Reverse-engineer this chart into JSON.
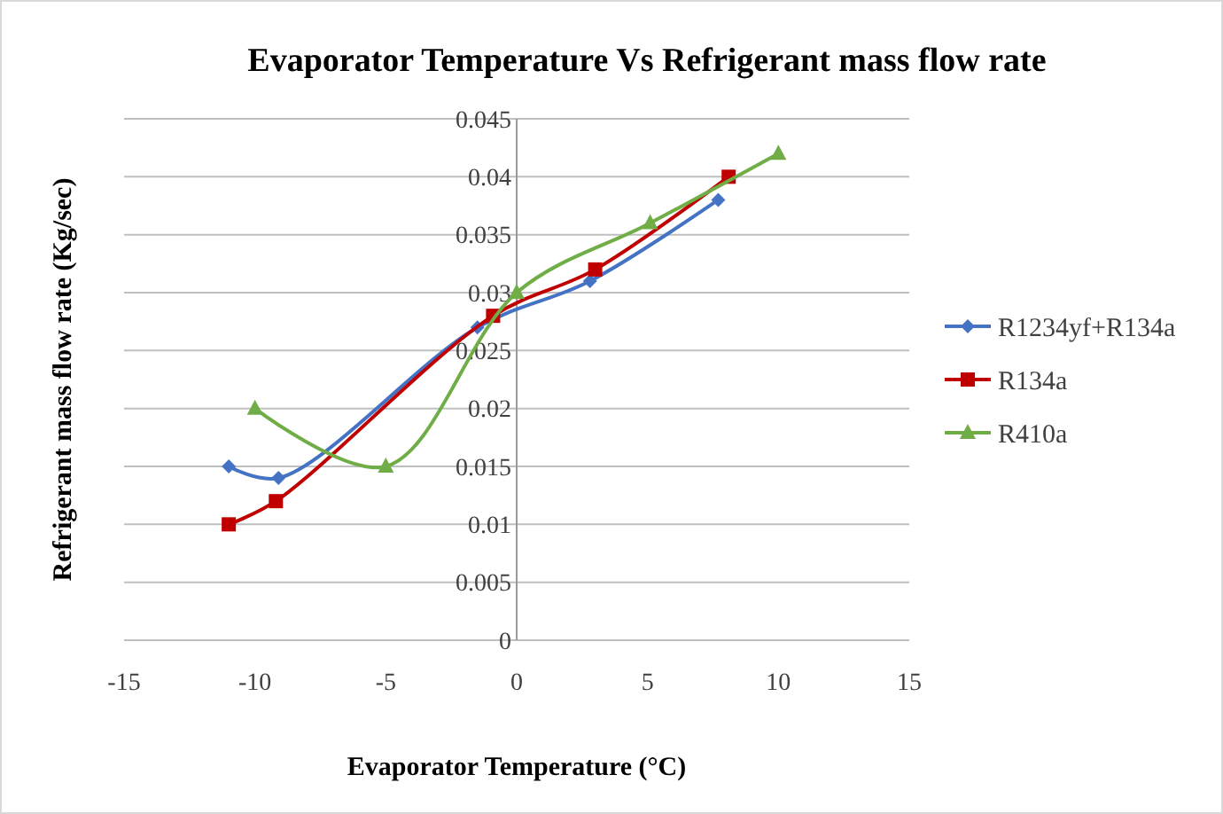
{
  "chart_data": {
    "type": "line",
    "title": "Evaporator Temperature Vs Refrigerant mass flow rate",
    "xlabel": "Evaporator Temperature (°C)",
    "ylabel": "Refrigerant mass flow rate (Kg/sec)",
    "xlim": [
      -15,
      15
    ],
    "xticks": [
      -15,
      -10,
      -5,
      0,
      5,
      10,
      15
    ],
    "ylim": [
      0,
      0.045
    ],
    "yticks": [
      0,
      0.005,
      0.01,
      0.015,
      0.02,
      0.025,
      0.03,
      0.035,
      0.04,
      0.045
    ],
    "grid": "y",
    "legend": "right",
    "series": [
      {
        "name": "R1234yf+R134a",
        "color": "#4472c4",
        "marker": "diamond",
        "x": [
          -11,
          -9.1,
          -1.5,
          2.8,
          7.7
        ],
        "values": [
          0.015,
          0.014,
          0.027,
          0.031,
          0.038
        ]
      },
      {
        "name": "R134a",
        "color": "#c00000",
        "marker": "square",
        "x": [
          -11,
          -9.2,
          -0.9,
          3,
          8.1
        ],
        "values": [
          0.01,
          0.012,
          0.028,
          0.032,
          0.04
        ]
      },
      {
        "name": "R410a",
        "color": "#70ad47",
        "marker": "triangle",
        "x": [
          -10,
          -5,
          0,
          5.1,
          10
        ],
        "values": [
          0.02,
          0.015,
          0.03,
          0.036,
          0.042
        ]
      }
    ]
  }
}
